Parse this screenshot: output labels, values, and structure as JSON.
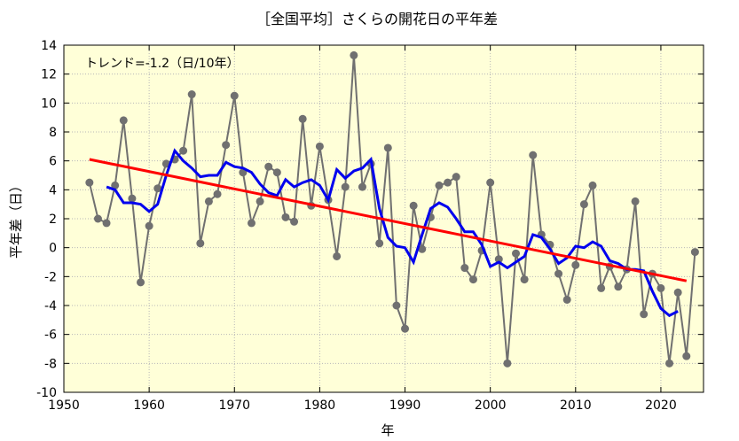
{
  "chart_data": {
    "type": "line",
    "title": "［全国平均］さくらの開花日の平年差",
    "xlabel": "年",
    "ylabel": "平年差（日）",
    "annotation": "トレンド=-1.2（日/10年）",
    "xlim": [
      1950,
      2025
    ],
    "ylim": [
      -10,
      14
    ],
    "xticks": [
      1950,
      1960,
      1970,
      1980,
      1990,
      2000,
      2010,
      2020
    ],
    "yticks": [
      -10,
      -8,
      -6,
      -4,
      -2,
      0,
      2,
      4,
      6,
      8,
      10,
      12,
      14
    ],
    "grid": true,
    "background_color": "#ffffd8",
    "series": [
      {
        "style": "line-markers",
        "color": "#707070",
        "x": [
          1953,
          1954,
          1955,
          1956,
          1957,
          1958,
          1959,
          1960,
          1961,
          1962,
          1963,
          1964,
          1965,
          1966,
          1967,
          1968,
          1969,
          1970,
          1971,
          1972,
          1973,
          1974,
          1975,
          1976,
          1977,
          1978,
          1979,
          1980,
          1981,
          1982,
          1983,
          1984,
          1985,
          1986,
          1987,
          1988,
          1989,
          1990,
          1991,
          1992,
          1993,
          1994,
          1995,
          1996,
          1997,
          1998,
          1999,
          2000,
          2001,
          2002,
          2003,
          2004,
          2005,
          2006,
          2007,
          2008,
          2009,
          2010,
          2011,
          2012,
          2013,
          2014,
          2015,
          2016,
          2017,
          2018,
          2019,
          2020,
          2021,
          2022,
          2023,
          2024
        ],
        "y": [
          4.5,
          2.0,
          1.7,
          4.3,
          8.8,
          3.4,
          -2.4,
          1.5,
          4.1,
          5.8,
          6.1,
          6.7,
          10.6,
          0.3,
          3.2,
          3.7,
          7.1,
          10.5,
          5.2,
          1.7,
          3.2,
          5.6,
          5.2,
          2.1,
          1.8,
          8.9,
          2.9,
          7.0,
          3.3,
          -0.6,
          4.2,
          13.3,
          4.2,
          5.8,
          0.3,
          6.9,
          -4.0,
          -5.6,
          2.9,
          -0.1,
          2.1,
          4.3,
          4.5,
          4.9,
          -1.4,
          -2.2,
          -0.2,
          4.5,
          -0.8,
          -8.0,
          -0.4,
          -2.2,
          6.4,
          0.9,
          0.2,
          -1.8,
          -3.6,
          -1.2,
          3.0,
          4.3,
          -2.8,
          -1.3,
          -2.7,
          -1.5,
          3.2,
          -4.6,
          -1.8,
          -2.8,
          -8.0,
          -3.1,
          -7.5,
          -0.3
        ]
      },
      {
        "style": "line",
        "color": "#0000ee",
        "x": [
          1955,
          1956,
          1957,
          1958,
          1959,
          1960,
          1961,
          1962,
          1963,
          1964,
          1965,
          1966,
          1967,
          1968,
          1969,
          1970,
          1971,
          1972,
          1973,
          1974,
          1975,
          1976,
          1977,
          1978,
          1979,
          1980,
          1981,
          1982,
          1983,
          1984,
          1985,
          1986,
          1987,
          1988,
          1989,
          1990,
          1991,
          1992,
          1993,
          1994,
          1995,
          1996,
          1997,
          1998,
          1999,
          2000,
          2001,
          2002,
          2003,
          2004,
          2005,
          2006,
          2007,
          2008,
          2009,
          2010,
          2011,
          2012,
          2013,
          2014,
          2015,
          2016,
          2017,
          2018,
          2019,
          2020,
          2021,
          2022
        ],
        "y": [
          4.2,
          4.0,
          3.1,
          3.1,
          3.0,
          2.5,
          3.0,
          5.0,
          6.7,
          6.0,
          5.5,
          4.9,
          5.0,
          5.0,
          5.9,
          5.6,
          5.5,
          5.2,
          4.4,
          3.8,
          3.6,
          4.7,
          4.2,
          4.5,
          4.7,
          4.3,
          3.3,
          5.4,
          4.8,
          5.3,
          5.5,
          6.1,
          2.7,
          0.7,
          0.1,
          0.0,
          -1.0,
          0.9,
          2.7,
          3.1,
          2.8,
          2.0,
          1.1,
          1.1,
          0.2,
          -1.3,
          -1.0,
          -1.4,
          -1.0,
          -0.6,
          0.9,
          0.7,
          -0.1,
          -1.1,
          -0.7,
          0.1,
          0.0,
          0.4,
          0.1,
          -0.9,
          -1.1,
          -1.5,
          -1.5,
          -1.6,
          -3.0,
          -4.2,
          -4.7,
          -4.4
        ]
      },
      {
        "style": "trend",
        "color": "#ff0000",
        "x": [
          1953,
          2023
        ],
        "y": [
          6.1,
          -2.3
        ]
      }
    ]
  }
}
